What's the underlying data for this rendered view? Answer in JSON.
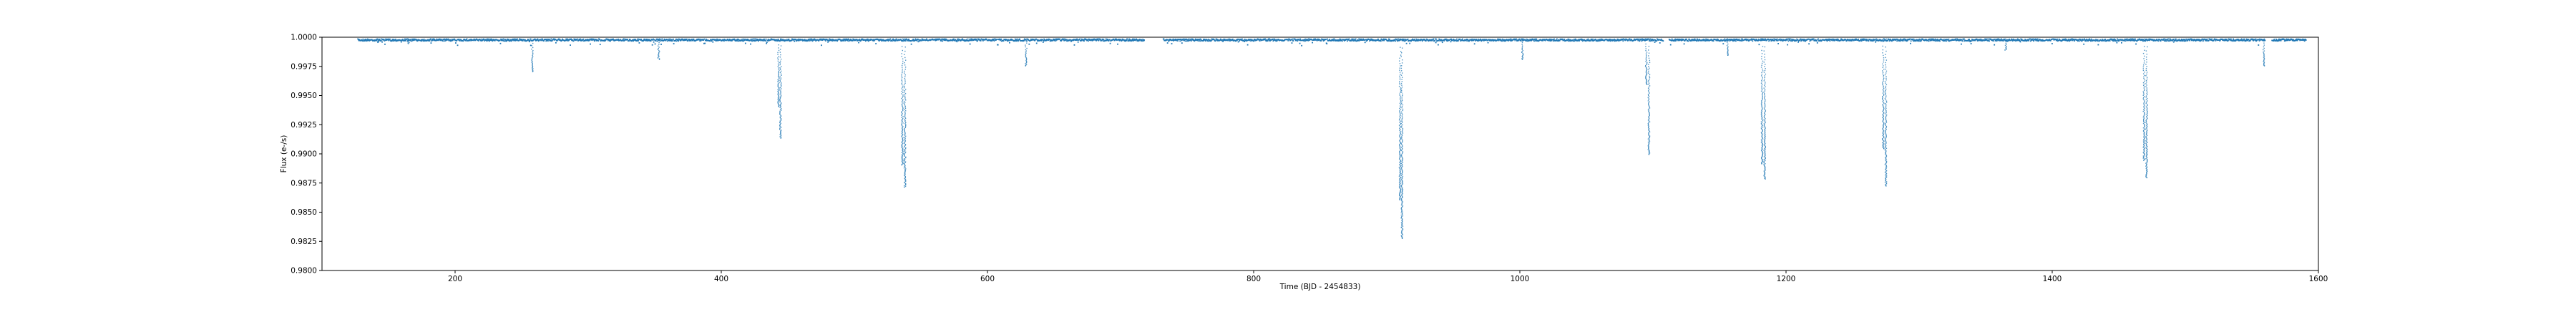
{
  "chart_data": {
    "type": "scatter",
    "title": "",
    "xlabel": "Time (BJD - 2454833)",
    "ylabel": "Flux (e-/s)",
    "xlim": [
      100,
      1600
    ],
    "ylim": [
      0.98,
      1.0
    ],
    "xticks": [
      200,
      400,
      600,
      800,
      1000,
      1200,
      1400,
      1600
    ],
    "yticks": [
      0.98,
      0.9825,
      0.985,
      0.9875,
      0.99,
      0.9925,
      0.995,
      0.9975,
      1.0
    ],
    "xtick_labels": [
      "200",
      "400",
      "600",
      "800",
      "1000",
      "1200",
      "1400",
      "1600"
    ],
    "ytick_labels": [
      "0.9800",
      "0.9825",
      "0.9850",
      "0.9875",
      "0.9900",
      "0.9925",
      "0.9950",
      "0.9975",
      "1.0000"
    ],
    "grid": false,
    "legend": "none",
    "series_color": "#1f77b4",
    "baseline_flux": 0.99985,
    "observation_gaps": [
      [
        718,
        732
      ],
      [
        1108,
        1112
      ],
      [
        1560,
        1565
      ]
    ],
    "dips": [
      {
        "time": 142,
        "min_flux": 0.99955
      },
      {
        "time": 165,
        "min_flux": 0.99945
      },
      {
        "time": 244,
        "min_flux": 0.9997
      },
      {
        "time": 258,
        "min_flux": 0.99705
      },
      {
        "time": 353,
        "min_flux": 0.9981
      },
      {
        "time": 443,
        "min_flux": 0.99405
      },
      {
        "time": 444.5,
        "min_flux": 0.99135
      },
      {
        "time": 536,
        "min_flux": 0.98905
      },
      {
        "time": 538,
        "min_flux": 0.98715
      },
      {
        "time": 629,
        "min_flux": 0.99755
      },
      {
        "time": 910,
        "min_flux": 0.98605
      },
      {
        "time": 911.5,
        "min_flux": 0.98275
      },
      {
        "time": 1002,
        "min_flux": 0.9981
      },
      {
        "time": 1095,
        "min_flux": 0.99595
      },
      {
        "time": 1097,
        "min_flux": 0.98995
      },
      {
        "time": 1156,
        "min_flux": 0.99845
      },
      {
        "time": 1182,
        "min_flux": 0.98915
      },
      {
        "time": 1184,
        "min_flux": 0.98785
      },
      {
        "time": 1273,
        "min_flux": 0.99045
      },
      {
        "time": 1275,
        "min_flux": 0.98725
      },
      {
        "time": 1365,
        "min_flux": 0.9989
      },
      {
        "time": 1469,
        "min_flux": 0.98945
      },
      {
        "time": 1471,
        "min_flux": 0.98795
      },
      {
        "time": 1559,
        "min_flux": 0.99755
      }
    ]
  }
}
